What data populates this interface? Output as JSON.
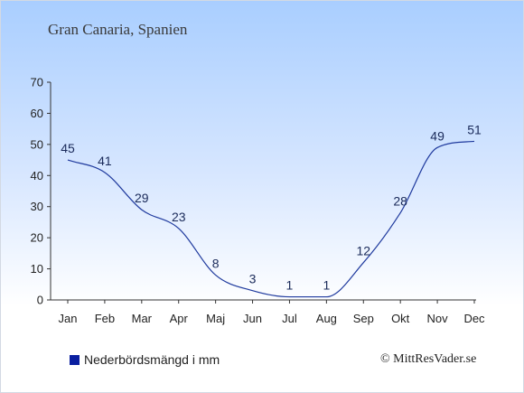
{
  "chart_data": {
    "type": "line",
    "title": "Gran Canaria, Spanien",
    "categories": [
      "Jan",
      "Feb",
      "Mar",
      "Apr",
      "Maj",
      "Jun",
      "Jul",
      "Aug",
      "Sep",
      "Okt",
      "Nov",
      "Dec"
    ],
    "series": [
      {
        "name": "Nederbördsmängd i mm",
        "values": [
          45,
          41,
          29,
          23,
          8,
          3,
          1,
          1,
          12,
          28,
          49,
          51
        ]
      }
    ],
    "data_labels": [
      "45",
      "41",
      "29",
      "23",
      "8",
      "3",
      "1",
      "1",
      "12",
      "28",
      "49",
      "51"
    ],
    "y_ticks": [
      "0",
      "10",
      "20",
      "30",
      "40",
      "50",
      "60",
      "70"
    ],
    "ylim": [
      0,
      70
    ],
    "grid": false,
    "legend_position": "bottom-left",
    "line_color": "#1f3a9e",
    "legend_color": "#0a1fa0"
  },
  "credit": "© MittResVader.se"
}
